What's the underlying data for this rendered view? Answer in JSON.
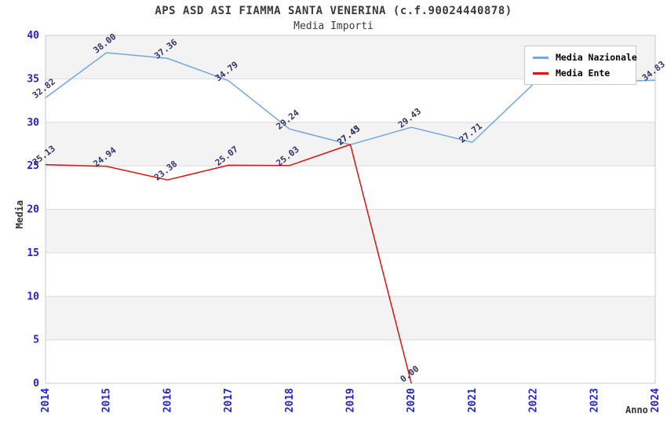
{
  "chart_data": {
    "type": "line",
    "title": "APS ASD ASI FIAMMA SANTA VENERINA (c.f.90024440878)",
    "subtitle": "Media Importi",
    "xlabel": "Anno",
    "ylabel": "Media",
    "x": [
      2014,
      2015,
      2016,
      2017,
      2018,
      2019,
      2020,
      2021,
      2022,
      2023,
      2024
    ],
    "ylim": [
      0,
      40
    ],
    "yticks": [
      0,
      5,
      10,
      15,
      20,
      25,
      30,
      35,
      40
    ],
    "grid": "alternating horizontal bands",
    "legend_position": "top-right",
    "series": [
      {
        "name": "Media Nazionale",
        "color": "#74a7e0",
        "x": [
          2014,
          2015,
          2016,
          2017,
          2018,
          2019,
          2020,
          2021,
          2022,
          2023,
          2024
        ],
        "values": [
          32.82,
          38.0,
          37.36,
          34.79,
          29.24,
          27.43,
          29.43,
          27.71,
          34.4,
          34.65,
          34.83
        ],
        "labels": [
          "32.82",
          "38.00",
          "37.36",
          "34.79",
          "29.24",
          "27.43",
          "29.43",
          "27.71",
          "",
          "",
          "34.83"
        ]
      },
      {
        "name": "Media Ente",
        "color": "#dd1111",
        "x": [
          2014,
          2015,
          2016,
          2017,
          2018,
          2019,
          2020
        ],
        "values": [
          25.13,
          24.94,
          23.38,
          25.07,
          25.03,
          27.45,
          0.0
        ],
        "labels": [
          "25.13",
          "24.94",
          "23.38",
          "25.07",
          "25.03",
          "27.45",
          "0.00"
        ]
      }
    ]
  },
  "colors": {
    "band_gray": "#f3f3f3",
    "band_white": "#ffffff",
    "grid": "#dcdcdc",
    "plot_border": "#c9c9c9",
    "tick_label": "#2323cc",
    "point_label": "#33336b",
    "title": "#3a3a3a"
  }
}
